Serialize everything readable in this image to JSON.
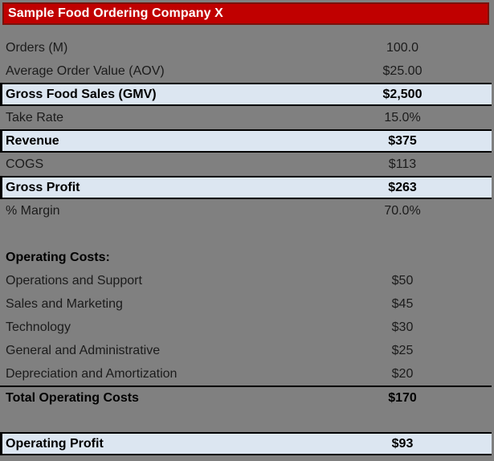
{
  "title": "Sample Food Ordering Company X",
  "colors": {
    "background": "#808080",
    "header_bg": "#c00000",
    "header_border": "#7a120b",
    "header_text": "#ffffff",
    "highlight_bg": "#dce6f1",
    "border_black": "#000000",
    "text": "#1b1b1b",
    "text_bold": "#000000"
  },
  "table": {
    "rows": [
      {
        "label": "Orders (M)",
        "value": "100.0",
        "style": "normal"
      },
      {
        "label": "Average Order Value (AOV)",
        "value": "$25.00",
        "style": "normal"
      },
      {
        "label": "Gross Food Sales (GMV)",
        "value": "$2,500",
        "style": "highlight"
      },
      {
        "label": "Take Rate",
        "value": "15.0%",
        "style": "normal"
      },
      {
        "label": "Revenue",
        "value": "$375",
        "style": "highlight"
      },
      {
        "label": "COGS",
        "value": "$113",
        "style": "normal"
      },
      {
        "label": "Gross Profit",
        "value": "$263",
        "style": "highlight"
      },
      {
        "label": "% Margin",
        "value": "70.0%",
        "style": "normal"
      },
      {
        "label": "",
        "value": "",
        "style": "blank"
      },
      {
        "label": "Operating Costs:",
        "value": "",
        "style": "section"
      },
      {
        "label": "Operations and Support",
        "value": "$50",
        "style": "normal"
      },
      {
        "label": "Sales and Marketing",
        "value": "$45",
        "style": "normal"
      },
      {
        "label": "Technology",
        "value": "$30",
        "style": "normal"
      },
      {
        "label": "General and Administrative",
        "value": "$25",
        "style": "normal"
      },
      {
        "label": "Depreciation and Amortization",
        "value": "$20",
        "style": "normal"
      },
      {
        "label": "Total Operating Costs",
        "value": "$170",
        "style": "total"
      },
      {
        "label": "",
        "value": "",
        "style": "blank"
      },
      {
        "label": "Operating Profit",
        "value": "$93",
        "style": "highlight"
      }
    ]
  }
}
